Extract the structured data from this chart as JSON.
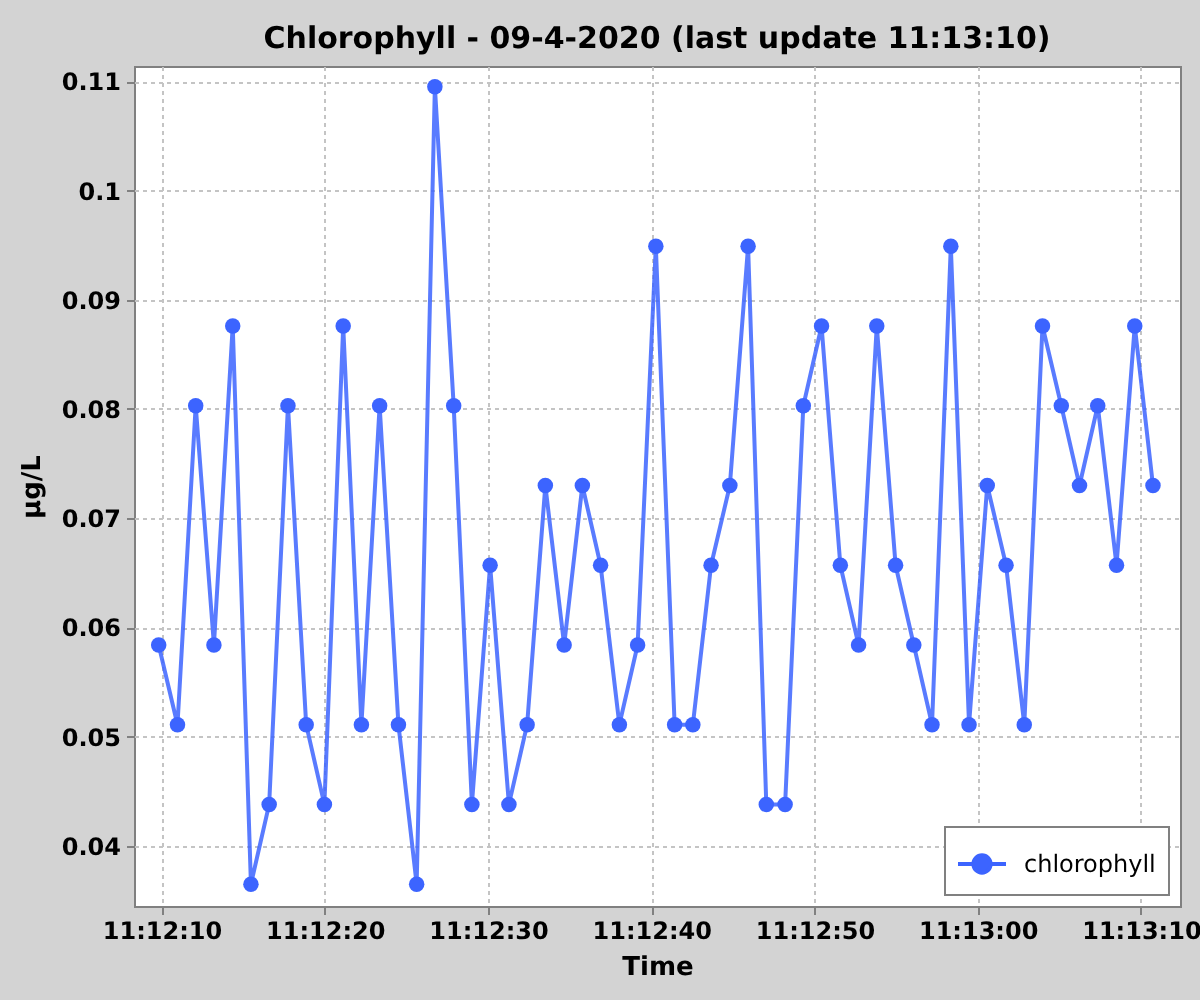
{
  "chart_data": {
    "type": "line",
    "title": "Chlorophyll - 09-4-2020 (last update 11:13:10)",
    "xlabel": "Time",
    "ylabel": "µg/L",
    "x": [
      11.20273,
      11.20305,
      11.20336,
      11.20367,
      11.20399,
      11.2043,
      11.20461,
      11.20493,
      11.20524,
      11.20555,
      11.20587,
      11.20618,
      11.20649,
      11.20681,
      11.20712,
      11.20743,
      11.20775,
      11.20806,
      11.20837,
      11.20869,
      11.209,
      11.20931,
      11.20963,
      11.20994,
      11.21025,
      11.21057,
      11.21088,
      11.21119,
      11.21151,
      11.21182,
      11.21213,
      11.21245,
      11.21276,
      11.21307,
      11.21339,
      11.2137,
      11.21401,
      11.21433,
      11.21464,
      11.21495,
      11.21527,
      11.21558,
      11.21589,
      11.21621,
      11.21652,
      11.21683,
      11.21715,
      11.21746,
      11.21777,
      11.21809,
      11.2184,
      11.21871,
      11.21903,
      11.21934,
      11.21965
    ],
    "series": [
      {
        "name": "chlorophyll",
        "color": "#3c64ff",
        "values": [
          0.0584,
          0.0511,
          0.0803,
          0.0584,
          0.0876,
          0.0365,
          0.0438,
          0.0803,
          0.0511,
          0.0438,
          0.0876,
          0.0511,
          0.0803,
          0.0511,
          0.0365,
          0.1095,
          0.0803,
          0.0438,
          0.0657,
          0.0438,
          0.0511,
          0.073,
          0.0584,
          0.073,
          0.0657,
          0.0511,
          0.0584,
          0.0949,
          0.0511,
          0.0511,
          0.0657,
          0.073,
          0.0949,
          0.0438,
          0.0438,
          0.0803,
          0.0876,
          0.0657,
          0.0584,
          0.0876,
          0.0657,
          0.0584,
          0.0511,
          0.0949,
          0.0511,
          0.073,
          0.0657,
          0.0511,
          0.0876,
          0.0803,
          0.073,
          0.0803,
          0.0657,
          0.0876,
          0.073
        ]
      }
    ],
    "xlim": [
      11.20231,
      11.22011
    ],
    "xticks": [
      {
        "value": 11.2027778,
        "label": "11:12:10"
      },
      {
        "value": 11.2055556,
        "label": "11:12:20"
      },
      {
        "value": 11.2083333,
        "label": "11:12:30"
      },
      {
        "value": 11.2111111,
        "label": "11:12:40"
      },
      {
        "value": 11.2138889,
        "label": "11:12:50"
      },
      {
        "value": 11.2166667,
        "label": "11:13:00"
      },
      {
        "value": 11.2194444,
        "label": "11:13:10"
      }
    ],
    "ylim": [
      0.0345,
      0.1114
    ],
    "yticks": [
      0.04,
      0.05,
      0.06,
      0.07,
      0.08,
      0.09,
      0.1,
      0.11
    ],
    "grid": true,
    "legend": "bottom right",
    "marker": "circle",
    "line_style": "solid"
  }
}
